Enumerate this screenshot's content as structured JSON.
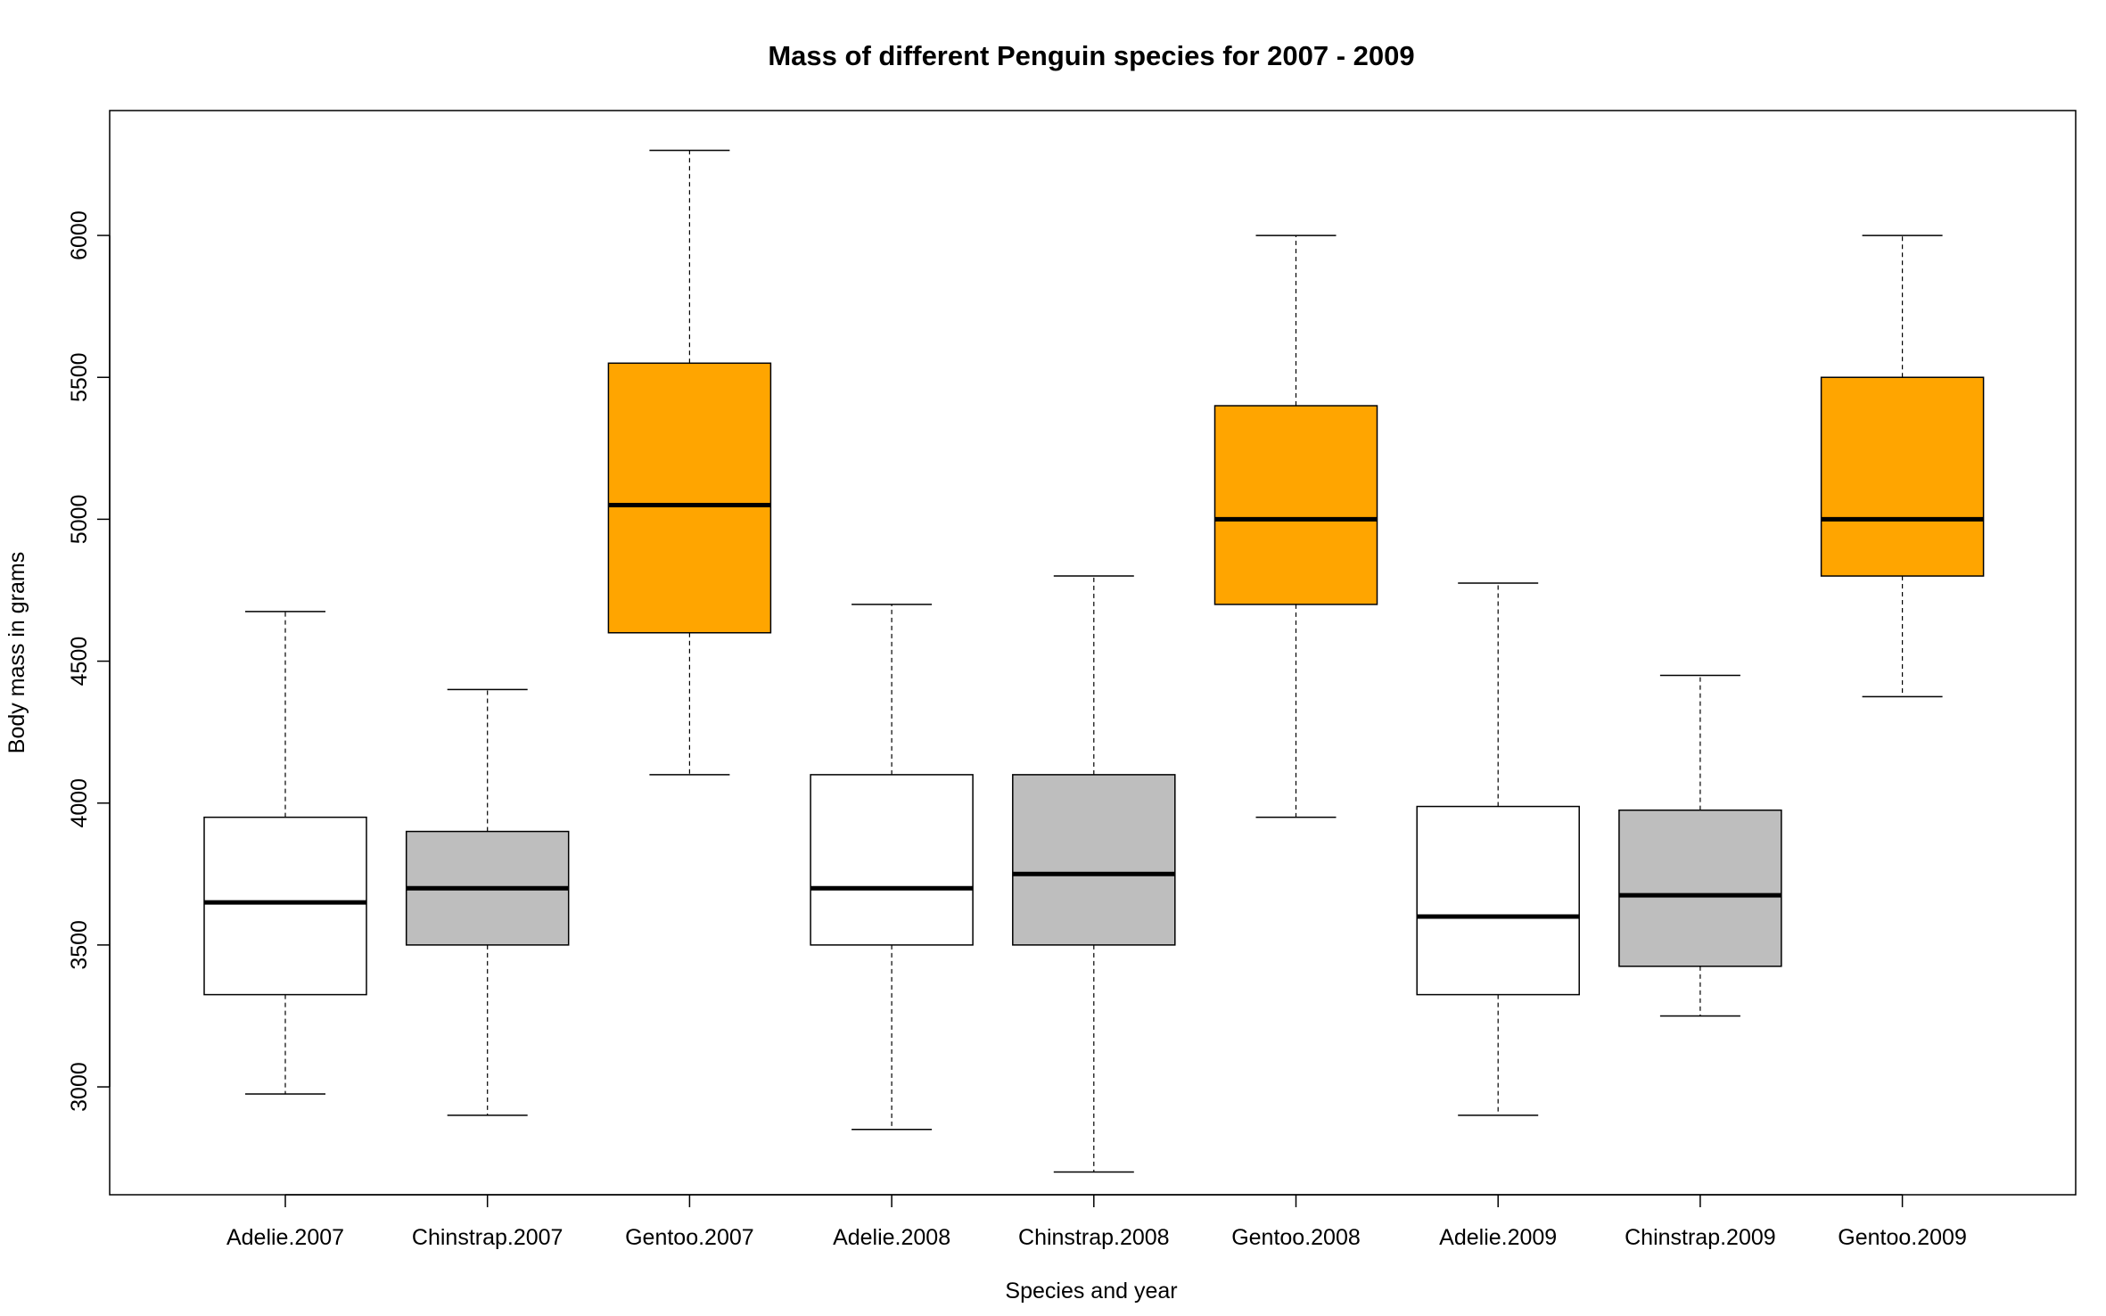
{
  "chart_data": {
    "type": "boxplot",
    "title": "Mass of different Penguin species for 2007 - 2009",
    "xlabel": "Species and year",
    "ylabel": "Body mass in grams",
    "ylim": [
      2620,
      6440
    ],
    "yticks": [
      "3000",
      "3500",
      "4000",
      "4500",
      "5000",
      "5500",
      "6000"
    ],
    "grid": false,
    "legend": "none",
    "fill_colors": {
      "Adelie": "#ffffff",
      "Chinstrap": "#bebebe",
      "Gentoo": "#ffa500"
    },
    "categories": [
      "Adelie.2007",
      "Chinstrap.2007",
      "Gentoo.2007",
      "Adelie.2008",
      "Chinstrap.2008",
      "Gentoo.2008",
      "Adelie.2009",
      "Chinstrap.2009",
      "Gentoo.2009"
    ],
    "boxes": [
      {
        "label": "Adelie.2007",
        "species": "Adelie",
        "min": 2975,
        "q1": 3325,
        "median": 3650,
        "q3": 3950,
        "max": 4675
      },
      {
        "label": "Chinstrap.2007",
        "species": "Chinstrap",
        "min": 2900,
        "q1": 3500,
        "median": 3700,
        "q3": 3900,
        "max": 4400
      },
      {
        "label": "Gentoo.2007",
        "species": "Gentoo",
        "min": 4100,
        "q1": 4600,
        "median": 5050,
        "q3": 5550,
        "max": 6300
      },
      {
        "label": "Adelie.2008",
        "species": "Adelie",
        "min": 2850,
        "q1": 3500,
        "median": 3700,
        "q3": 4100,
        "max": 4700
      },
      {
        "label": "Chinstrap.2008",
        "species": "Chinstrap",
        "min": 2700,
        "q1": 3500,
        "median": 3750,
        "q3": 4100,
        "max": 4800
      },
      {
        "label": "Gentoo.2008",
        "species": "Gentoo",
        "min": 3950,
        "q1": 4700,
        "median": 5000,
        "q3": 5400,
        "max": 6000
      },
      {
        "label": "Adelie.2009",
        "species": "Adelie",
        "min": 2900,
        "q1": 3325,
        "median": 3600,
        "q3": 3988,
        "max": 4775
      },
      {
        "label": "Chinstrap.2009",
        "species": "Chinstrap",
        "min": 3250,
        "q1": 3425,
        "median": 3675,
        "q3": 3975,
        "max": 4450
      },
      {
        "label": "Gentoo.2009",
        "species": "Gentoo",
        "min": 4375,
        "q1": 4800,
        "median": 5000,
        "q3": 5500,
        "max": 6000
      }
    ]
  }
}
